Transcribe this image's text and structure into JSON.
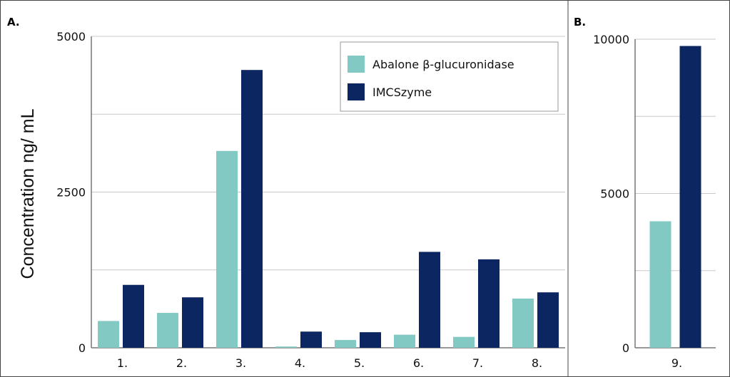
{
  "chart_data": [
    {
      "panel": "A.",
      "type": "bar",
      "ylabel": "Concentration ng/ mL",
      "ylim": [
        0,
        5000
      ],
      "yticks": [
        "0",
        "2500",
        "5000"
      ],
      "grid": true,
      "legend": "top-right",
      "categories": [
        "1.",
        "2.",
        "3.",
        "4.",
        "5.",
        "6.",
        "7.",
        "8."
      ],
      "series": [
        {
          "name": "Abalone β-glucuronidase",
          "color": "#82c8c3",
          "values": [
            430,
            560,
            3160,
            20,
            125,
            210,
            175,
            790
          ]
        },
        {
          "name": "IMCSzyme",
          "color": "#0b2660",
          "values": [
            1010,
            810,
            4460,
            260,
            250,
            1540,
            1420,
            890
          ]
        }
      ]
    },
    {
      "panel": "B.",
      "type": "bar",
      "ylim": [
        0,
        10000
      ],
      "yticks": [
        "0",
        "5000",
        "10000"
      ],
      "grid": true,
      "categories": [
        "9."
      ],
      "series": [
        {
          "name": "Abalone β-glucuronidase",
          "color": "#82c8c3",
          "values": [
            4100
          ]
        },
        {
          "name": "IMCSzyme",
          "color": "#0b2660",
          "values": [
            9780
          ]
        }
      ]
    }
  ]
}
